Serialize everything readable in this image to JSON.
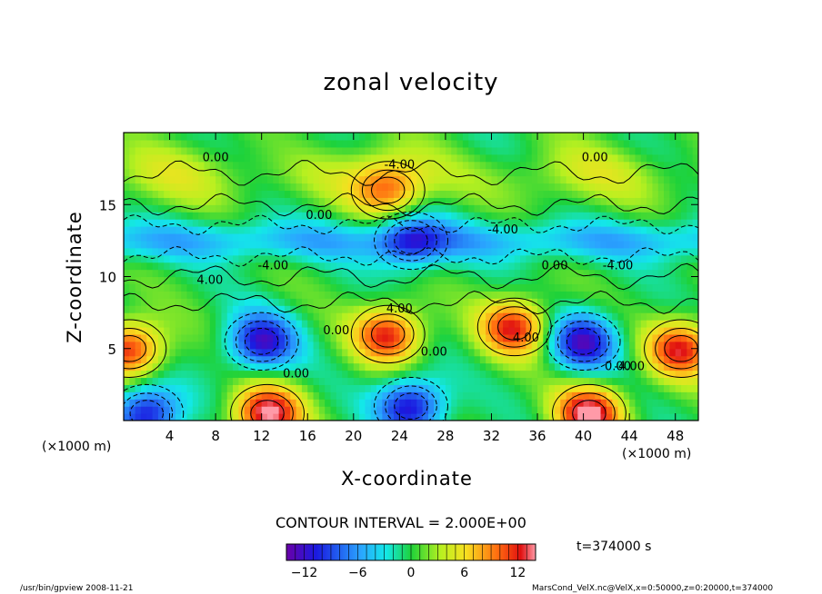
{
  "chart_data": {
    "type": "heatmap",
    "title": "zonal velocity",
    "xlabel": "X-coordinate",
    "ylabel": "Z-coordinate",
    "x_unit": "(×1000 m)",
    "xlim": [
      0,
      50
    ],
    "ylim": [
      0,
      20
    ],
    "xticks": [
      "4",
      "8",
      "12",
      "16",
      "20",
      "24",
      "28",
      "32",
      "36",
      "40",
      "44",
      "48"
    ],
    "yticks": [
      "5",
      "10",
      "15"
    ],
    "contour_interval": "CONTOUR INTERVAL = 2.000E+00",
    "contour_labels": [
      "0.00",
      "-4.00",
      "4.00"
    ],
    "colorbar": {
      "range": [
        -14,
        14
      ],
      "ticks": [
        "−12",
        "−6",
        "0",
        "6",
        "12"
      ]
    },
    "time_label": "t=374000 s",
    "features": [
      {
        "x": 0.5,
        "z": 5,
        "value": 12
      },
      {
        "x": 12.5,
        "z": 0.5,
        "value": 14
      },
      {
        "x": 12,
        "z": 5.5,
        "value": -12
      },
      {
        "x": 23,
        "z": 6,
        "value": 12
      },
      {
        "x": 34,
        "z": 6.5,
        "value": 12
      },
      {
        "x": 40.5,
        "z": 0.5,
        "value": 14
      },
      {
        "x": 40,
        "z": 5.5,
        "value": -12
      },
      {
        "x": 48.5,
        "z": 5,
        "value": 12
      },
      {
        "x": 25,
        "z": 1,
        "value": -12
      },
      {
        "x": 2,
        "z": 0.5,
        "value": -12
      },
      {
        "x": 23,
        "z": 16,
        "value": 8
      },
      {
        "x": 25,
        "z": 12.5,
        "value": -8
      }
    ]
  },
  "footer": {
    "left": "/usr/bin/gpview  2008-11-21",
    "right": "MarsCond_VelX.nc@VelX,x=0:50000,z=0:20000,t=374000"
  }
}
